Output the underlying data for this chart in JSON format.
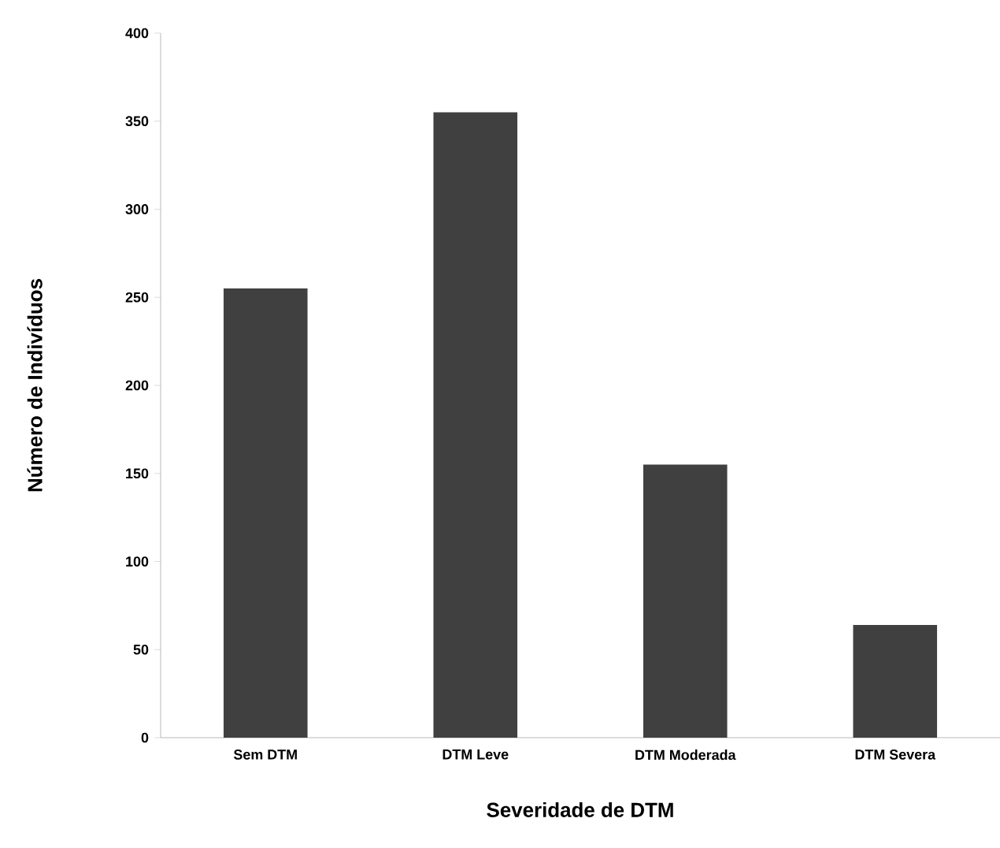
{
  "chart_data": {
    "type": "bar",
    "xlabel": "Severidade de DTM",
    "ylabel": "Número de Indivíduos",
    "categories": [
      "Sem DTM",
      "DTM Leve",
      "DTM Moderada",
      "DTM Severa"
    ],
    "values": [
      255,
      355,
      155,
      64
    ],
    "color": "#404040",
    "ylim": [
      0,
      400
    ],
    "yticks": [
      0,
      50,
      100,
      150,
      200,
      250,
      300,
      350,
      400
    ],
    "grid": false
  }
}
